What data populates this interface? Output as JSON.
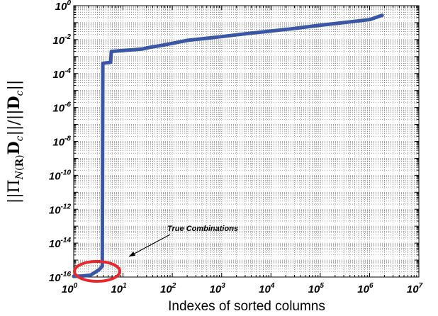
{
  "chart_data": {
    "type": "line",
    "title": "",
    "xlabel": "Indexes of sorted columns",
    "ylabel": "||Π_N(R) D_c|| / ||D_c||",
    "xscale": "log",
    "yscale": "log",
    "xlim": [
      1,
      10000000
    ],
    "ylim": [
      1e-16,
      1
    ],
    "grid": "minor-dotted",
    "x_ticks": [
      {
        "base": "10",
        "exp": "0"
      },
      {
        "base": "10",
        "exp": "1"
      },
      {
        "base": "10",
        "exp": "2"
      },
      {
        "base": "10",
        "exp": "3"
      },
      {
        "base": "10",
        "exp": "4"
      },
      {
        "base": "10",
        "exp": "5"
      },
      {
        "base": "10",
        "exp": "6"
      },
      {
        "base": "10",
        "exp": "7"
      }
    ],
    "y_ticks": [
      {
        "base": "10",
        "exp": "-16"
      },
      {
        "base": "10",
        "exp": "-14"
      },
      {
        "base": "10",
        "exp": "-12"
      },
      {
        "base": "10",
        "exp": "-10"
      },
      {
        "base": "10",
        "exp": "-8"
      },
      {
        "base": "10",
        "exp": "-6"
      },
      {
        "base": "10",
        "exp": "-4"
      },
      {
        "base": "10",
        "exp": "-2"
      },
      {
        "base": "10",
        "exp": "0"
      }
    ],
    "series": [
      {
        "color": "#3a56a6",
        "points": [
          [
            1,
            1.1e-16
          ],
          [
            1.5,
            1.15e-16
          ],
          [
            2.2,
            1.3e-16
          ],
          [
            2.8,
            2e-16
          ],
          [
            3.4,
            3e-16
          ],
          [
            3.8,
            4.5e-16
          ],
          [
            3.9,
            0.0004
          ],
          [
            4.5,
            0.00042
          ],
          [
            5.2,
            0.00044
          ],
          [
            5.6,
            0.00046
          ],
          [
            5.8,
            0.002
          ],
          [
            7,
            0.0021
          ],
          [
            10,
            0.0023
          ],
          [
            16,
            0.0025
          ],
          [
            25,
            0.0028
          ],
          [
            35,
            0.0035
          ],
          [
            60,
            0.0045
          ],
          [
            100,
            0.006
          ],
          [
            200,
            0.009
          ],
          [
            500,
            0.012
          ],
          [
            1000,
            0.015
          ],
          [
            3000,
            0.022
          ],
          [
            10000,
            0.032
          ],
          [
            30000,
            0.045
          ],
          [
            100000,
            0.07
          ],
          [
            300000,
            0.1
          ],
          [
            1000000,
            0.15
          ],
          [
            1800000,
            0.27
          ]
        ]
      }
    ],
    "annotations": [
      {
        "text": "True Combinations",
        "type": "arrow"
      },
      {
        "type": "ellipse",
        "color": "#e8262b",
        "label": "red circle around first points"
      }
    ]
  }
}
